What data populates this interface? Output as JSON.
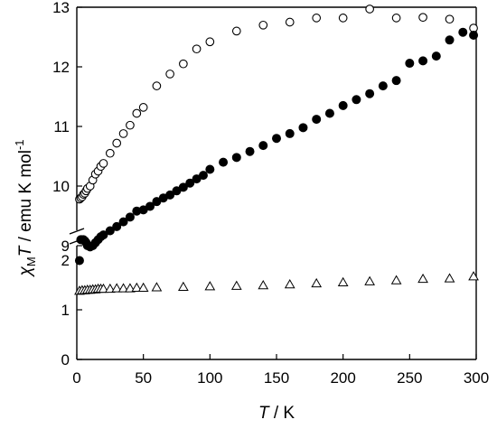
{
  "chart_data": {
    "type": "scatter",
    "title": "",
    "xlabel": {
      "italic": "T",
      "rest": " / K"
    },
    "ylabel": {
      "chi": "χ",
      "sub": "M",
      "italic": "T",
      "rest": " / emu K mol",
      "sup": "-1"
    },
    "xlim": [
      0,
      300
    ],
    "x_ticks": [
      "0",
      "50",
      "100",
      "150",
      "200",
      "250",
      "300"
    ],
    "y_axis": {
      "broken": true,
      "lower_range": [
        0,
        2.5
      ],
      "upper_range": [
        8.5,
        13
      ],
      "lower_ticks": [
        "0",
        "1",
        "2"
      ],
      "upper_ticks": [
        "9",
        "10",
        "11",
        "12",
        "13"
      ]
    },
    "grid": false,
    "series": [
      {
        "marker": "open-circle",
        "points": [
          [
            2,
            9.78
          ],
          [
            3,
            9.8
          ],
          [
            4,
            9.82
          ],
          [
            5,
            9.86
          ],
          [
            6,
            9.88
          ],
          [
            7,
            9.92
          ],
          [
            8,
            9.96
          ],
          [
            10,
            10.0
          ],
          [
            12,
            10.1
          ],
          [
            14,
            10.2
          ],
          [
            16,
            10.25
          ],
          [
            18,
            10.33
          ],
          [
            20,
            10.38
          ],
          [
            25,
            10.55
          ],
          [
            30,
            10.72
          ],
          [
            35,
            10.88
          ],
          [
            40,
            11.02
          ],
          [
            45,
            11.22
          ],
          [
            50,
            11.32
          ],
          [
            60,
            11.68
          ],
          [
            70,
            11.88
          ],
          [
            80,
            12.05
          ],
          [
            90,
            12.3
          ],
          [
            100,
            12.42
          ],
          [
            120,
            12.6
          ],
          [
            140,
            12.7
          ],
          [
            160,
            12.75
          ],
          [
            180,
            12.82
          ],
          [
            200,
            12.82
          ],
          [
            220,
            12.97
          ],
          [
            240,
            12.82
          ],
          [
            260,
            12.83
          ],
          [
            280,
            12.8
          ],
          [
            298,
            12.65
          ]
        ]
      },
      {
        "marker": "filled-circle",
        "points": [
          [
            2,
            8.75
          ],
          [
            3,
            9.1
          ],
          [
            4,
            9.1
          ],
          [
            5,
            9.1
          ],
          [
            6,
            9.08
          ],
          [
            7,
            9.05
          ],
          [
            8,
            9.0
          ],
          [
            10,
            8.98
          ],
          [
            12,
            9.0
          ],
          [
            14,
            9.05
          ],
          [
            16,
            9.1
          ],
          [
            18,
            9.15
          ],
          [
            20,
            9.18
          ],
          [
            25,
            9.25
          ],
          [
            30,
            9.32
          ],
          [
            35,
            9.4
          ],
          [
            40,
            9.48
          ],
          [
            45,
            9.58
          ],
          [
            50,
            9.6
          ],
          [
            55,
            9.66
          ],
          [
            60,
            9.74
          ],
          [
            65,
            9.8
          ],
          [
            70,
            9.85
          ],
          [
            75,
            9.92
          ],
          [
            80,
            9.98
          ],
          [
            85,
            10.05
          ],
          [
            90,
            10.12
          ],
          [
            95,
            10.18
          ],
          [
            100,
            10.28
          ],
          [
            110,
            10.4
          ],
          [
            120,
            10.48
          ],
          [
            130,
            10.58
          ],
          [
            140,
            10.68
          ],
          [
            150,
            10.8
          ],
          [
            160,
            10.88
          ],
          [
            170,
            10.98
          ],
          [
            180,
            11.12
          ],
          [
            190,
            11.22
          ],
          [
            200,
            11.35
          ],
          [
            210,
            11.45
          ],
          [
            220,
            11.55
          ],
          [
            230,
            11.68
          ],
          [
            240,
            11.77
          ],
          [
            250,
            12.06
          ],
          [
            260,
            12.1
          ],
          [
            270,
            12.18
          ],
          [
            280,
            12.45
          ],
          [
            290,
            12.58
          ],
          [
            298,
            12.53
          ]
        ]
      },
      {
        "marker": "open-triangle",
        "points": [
          [
            2,
            1.38
          ],
          [
            4,
            1.39
          ],
          [
            6,
            1.39
          ],
          [
            8,
            1.4
          ],
          [
            10,
            1.4
          ],
          [
            12,
            1.41
          ],
          [
            14,
            1.41
          ],
          [
            16,
            1.42
          ],
          [
            18,
            1.42
          ],
          [
            20,
            1.42
          ],
          [
            25,
            1.42
          ],
          [
            30,
            1.43
          ],
          [
            35,
            1.43
          ],
          [
            40,
            1.43
          ],
          [
            45,
            1.44
          ],
          [
            50,
            1.44
          ],
          [
            60,
            1.45
          ],
          [
            80,
            1.46
          ],
          [
            100,
            1.47
          ],
          [
            120,
            1.48
          ],
          [
            140,
            1.49
          ],
          [
            160,
            1.51
          ],
          [
            180,
            1.53
          ],
          [
            200,
            1.55
          ],
          [
            220,
            1.57
          ],
          [
            240,
            1.59
          ],
          [
            260,
            1.62
          ],
          [
            280,
            1.63
          ],
          [
            298,
            1.67
          ]
        ]
      }
    ]
  }
}
